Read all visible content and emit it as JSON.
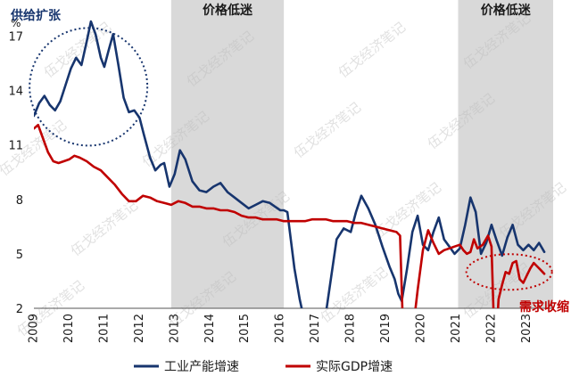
{
  "chart_data": {
    "type": "line",
    "unit": "%",
    "ylim": [
      2,
      18
    ],
    "yticks": [
      2,
      5,
      8,
      11,
      14,
      17
    ],
    "xlim": [
      2009,
      2023.75
    ],
    "xticks": [
      "2009",
      "2010",
      "2011",
      "2012",
      "2013",
      "2014",
      "2015",
      "2016",
      "2017",
      "2018",
      "2019",
      "2020",
      "2021",
      "2022",
      "2023"
    ],
    "bands": [
      {
        "label": "价格低迷",
        "x0": 2012.9,
        "x1": 2016.1
      },
      {
        "label": "价格低迷",
        "x0": 2021.05,
        "x1": 2023.75
      }
    ],
    "annotations": [
      {
        "label": "供给扩张",
        "type": "circle",
        "color": "#17356e"
      },
      {
        "label": "需求收缩",
        "type": "ellipse",
        "color": "#c00000"
      }
    ],
    "series": [
      {
        "name": "工业产能增速",
        "color": "#17356e",
        "x": [
          2009.0,
          2009.15,
          2009.3,
          2009.45,
          2009.6,
          2009.75,
          2009.9,
          2010.05,
          2010.2,
          2010.35,
          2010.5,
          2010.62,
          2010.75,
          2010.9,
          2011.0,
          2011.12,
          2011.25,
          2011.4,
          2011.55,
          2011.7,
          2011.85,
          2012.0,
          2012.12,
          2012.3,
          2012.45,
          2012.6,
          2012.7,
          2012.85,
          2013.0,
          2013.15,
          2013.3,
          2013.5,
          2013.7,
          2013.9,
          2014.1,
          2014.3,
          2014.5,
          2014.7,
          2014.9,
          2015.1,
          2015.3,
          2015.5,
          2015.7,
          2015.85,
          2016.0,
          2016.1,
          2016.2,
          2016.4,
          2016.55,
          2016.65,
          2016.75,
          2016.9,
          2017.1,
          2017.3,
          2017.6,
          2017.8,
          2018.0,
          2018.15,
          2018.3,
          2018.5,
          2018.7,
          2018.9,
          2019.1,
          2019.25,
          2019.35,
          2019.45,
          2019.6,
          2019.75,
          2019.9,
          2020.05,
          2020.2,
          2020.35,
          2020.5,
          2020.65,
          2020.8,
          2020.95,
          2021.1,
          2021.25,
          2021.4,
          2021.55,
          2021.7,
          2021.85,
          2022.0,
          2022.15,
          2022.3,
          2022.45,
          2022.6,
          2022.75,
          2022.9,
          2023.05,
          2023.2,
          2023.35,
          2023.5
        ],
        "values": [
          12.6,
          13.3,
          13.7,
          13.2,
          12.9,
          13.4,
          14.3,
          15.2,
          15.8,
          15.4,
          16.7,
          17.8,
          17.1,
          15.8,
          15.3,
          16.2,
          17.1,
          15.4,
          13.6,
          12.8,
          12.9,
          12.5,
          11.6,
          10.3,
          9.6,
          9.9,
          10.0,
          8.7,
          9.4,
          10.7,
          10.2,
          9.0,
          8.5,
          8.4,
          8.7,
          8.9,
          8.4,
          8.1,
          7.8,
          7.5,
          7.7,
          7.9,
          7.8,
          7.6,
          7.4,
          7.4,
          7.3,
          4.2,
          2.5,
          1.6,
          1.4,
          1.2,
          1.4,
          1.8,
          5.8,
          6.4,
          6.2,
          7.3,
          8.2,
          7.5,
          6.6,
          5.4,
          4.3,
          3.6,
          2.8,
          2.4,
          4.2,
          6.2,
          7.1,
          5.5,
          5.2,
          6.2,
          7.0,
          5.8,
          5.4,
          5.0,
          5.3,
          6.6,
          8.1,
          7.3,
          5.0,
          5.6,
          6.6,
          5.7,
          4.9,
          5.9,
          6.6,
          5.5,
          5.2,
          5.5,
          5.2,
          5.6,
          5.1
        ]
      },
      {
        "name": "实际GDP增速",
        "color": "#c00000",
        "x": [
          2009.0,
          2009.12,
          2009.25,
          2009.4,
          2009.55,
          2009.7,
          2009.85,
          2010.0,
          2010.15,
          2010.3,
          2010.5,
          2010.7,
          2010.9,
          2011.1,
          2011.3,
          2011.5,
          2011.7,
          2011.9,
          2012.1,
          2012.3,
          2012.5,
          2012.7,
          2012.9,
          2013.1,
          2013.3,
          2013.5,
          2013.7,
          2013.9,
          2014.1,
          2014.3,
          2014.5,
          2014.7,
          2014.9,
          2015.1,
          2015.3,
          2015.5,
          2015.7,
          2015.9,
          2016.1,
          2016.3,
          2016.5,
          2016.7,
          2016.9,
          2017.1,
          2017.3,
          2017.5,
          2017.7,
          2017.9,
          2018.1,
          2018.3,
          2018.5,
          2018.7,
          2018.9,
          2019.1,
          2019.3,
          2019.4,
          2019.45,
          2019.5,
          2019.6,
          2019.75,
          2019.9,
          2020.05,
          2020.2,
          2020.35,
          2020.5,
          2020.65,
          2020.8,
          2020.95,
          2021.1,
          2021.2,
          2021.3,
          2021.4,
          2021.5,
          2021.6,
          2021.75,
          2021.9,
          2022.0,
          2022.1,
          2022.2,
          2022.3,
          2022.4,
          2022.5,
          2022.6,
          2022.7,
          2022.8,
          2022.9,
          2023.0,
          2023.1,
          2023.2,
          2023.3,
          2023.4,
          2023.5
        ],
        "values": [
          11.9,
          12.1,
          11.4,
          10.6,
          10.1,
          10.0,
          10.1,
          10.2,
          10.4,
          10.3,
          10.1,
          9.8,
          9.6,
          9.2,
          8.8,
          8.3,
          7.9,
          7.9,
          8.2,
          8.1,
          7.9,
          7.8,
          7.7,
          7.9,
          7.8,
          7.6,
          7.6,
          7.5,
          7.5,
          7.4,
          7.4,
          7.3,
          7.1,
          7.0,
          7.0,
          6.9,
          6.9,
          6.9,
          6.8,
          6.8,
          6.8,
          6.8,
          6.9,
          6.9,
          6.9,
          6.8,
          6.8,
          6.8,
          6.7,
          6.7,
          6.6,
          6.5,
          6.4,
          6.3,
          6.2,
          6.0,
          3.0,
          0.0,
          -1.5,
          0.5,
          3.0,
          5.2,
          6.3,
          5.6,
          5.0,
          5.2,
          5.3,
          5.4,
          5.5,
          5.2,
          5.0,
          5.1,
          5.8,
          5.3,
          5.5,
          6.0,
          5.4,
          -1.0,
          2.5,
          3.3,
          4.0,
          3.9,
          4.5,
          4.6,
          3.6,
          3.4,
          3.8,
          4.2,
          4.5,
          4.3,
          4.1,
          3.9
        ]
      }
    ]
  },
  "watermark": "伍戈经济笔记"
}
